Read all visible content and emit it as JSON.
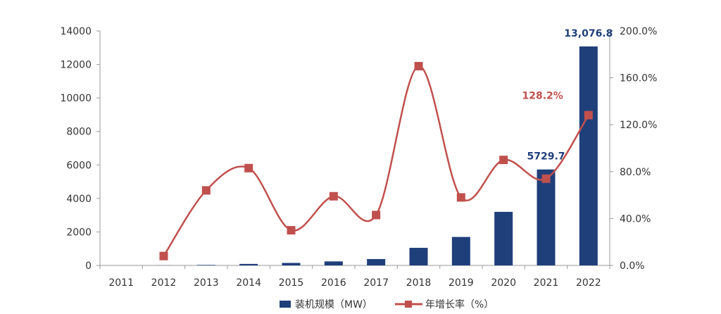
{
  "chart_data": {
    "type": "bar",
    "categories": [
      "2011",
      "2012",
      "2013",
      "2014",
      "2015",
      "2016",
      "2017",
      "2018",
      "2019",
      "2020",
      "2021",
      "2022"
    ],
    "series": [
      {
        "name": "装机规模（MW）",
        "kind": "bar",
        "axis": "left",
        "color": "#1f3f7a",
        "values": [
          0,
          5,
          30,
          90,
          150,
          240,
          380,
          1050,
          1700,
          3200,
          5729.7,
          13076.8
        ]
      },
      {
        "name": "年增长率（%）",
        "kind": "line",
        "axis": "right",
        "color": "#c0504d",
        "values": [
          null,
          8,
          64,
          83,
          30,
          59,
          43,
          170,
          58,
          90,
          74,
          128.2
        ]
      }
    ],
    "ylim_left": [
      0,
      14000
    ],
    "yticks_left": [
      "0",
      "2000",
      "4000",
      "6000",
      "8000",
      "10000",
      "12000",
      "14000"
    ],
    "ylim_right": [
      0,
      200
    ],
    "yticks_right": [
      "0.0%",
      "40.0%",
      "80.0%",
      "120.0%",
      "160.0%",
      "200.0%"
    ],
    "data_labels": [
      {
        "series": 0,
        "index": 10,
        "text": "5729.7",
        "color": "#1f3f7a"
      },
      {
        "series": 0,
        "index": 11,
        "text": "13,076.8",
        "color": "#1f3f7a"
      },
      {
        "series": 1,
        "index": 11,
        "text": "128.2%",
        "color": "#c0504d"
      }
    ],
    "legend": {
      "position": "bottom"
    },
    "grid": false
  }
}
